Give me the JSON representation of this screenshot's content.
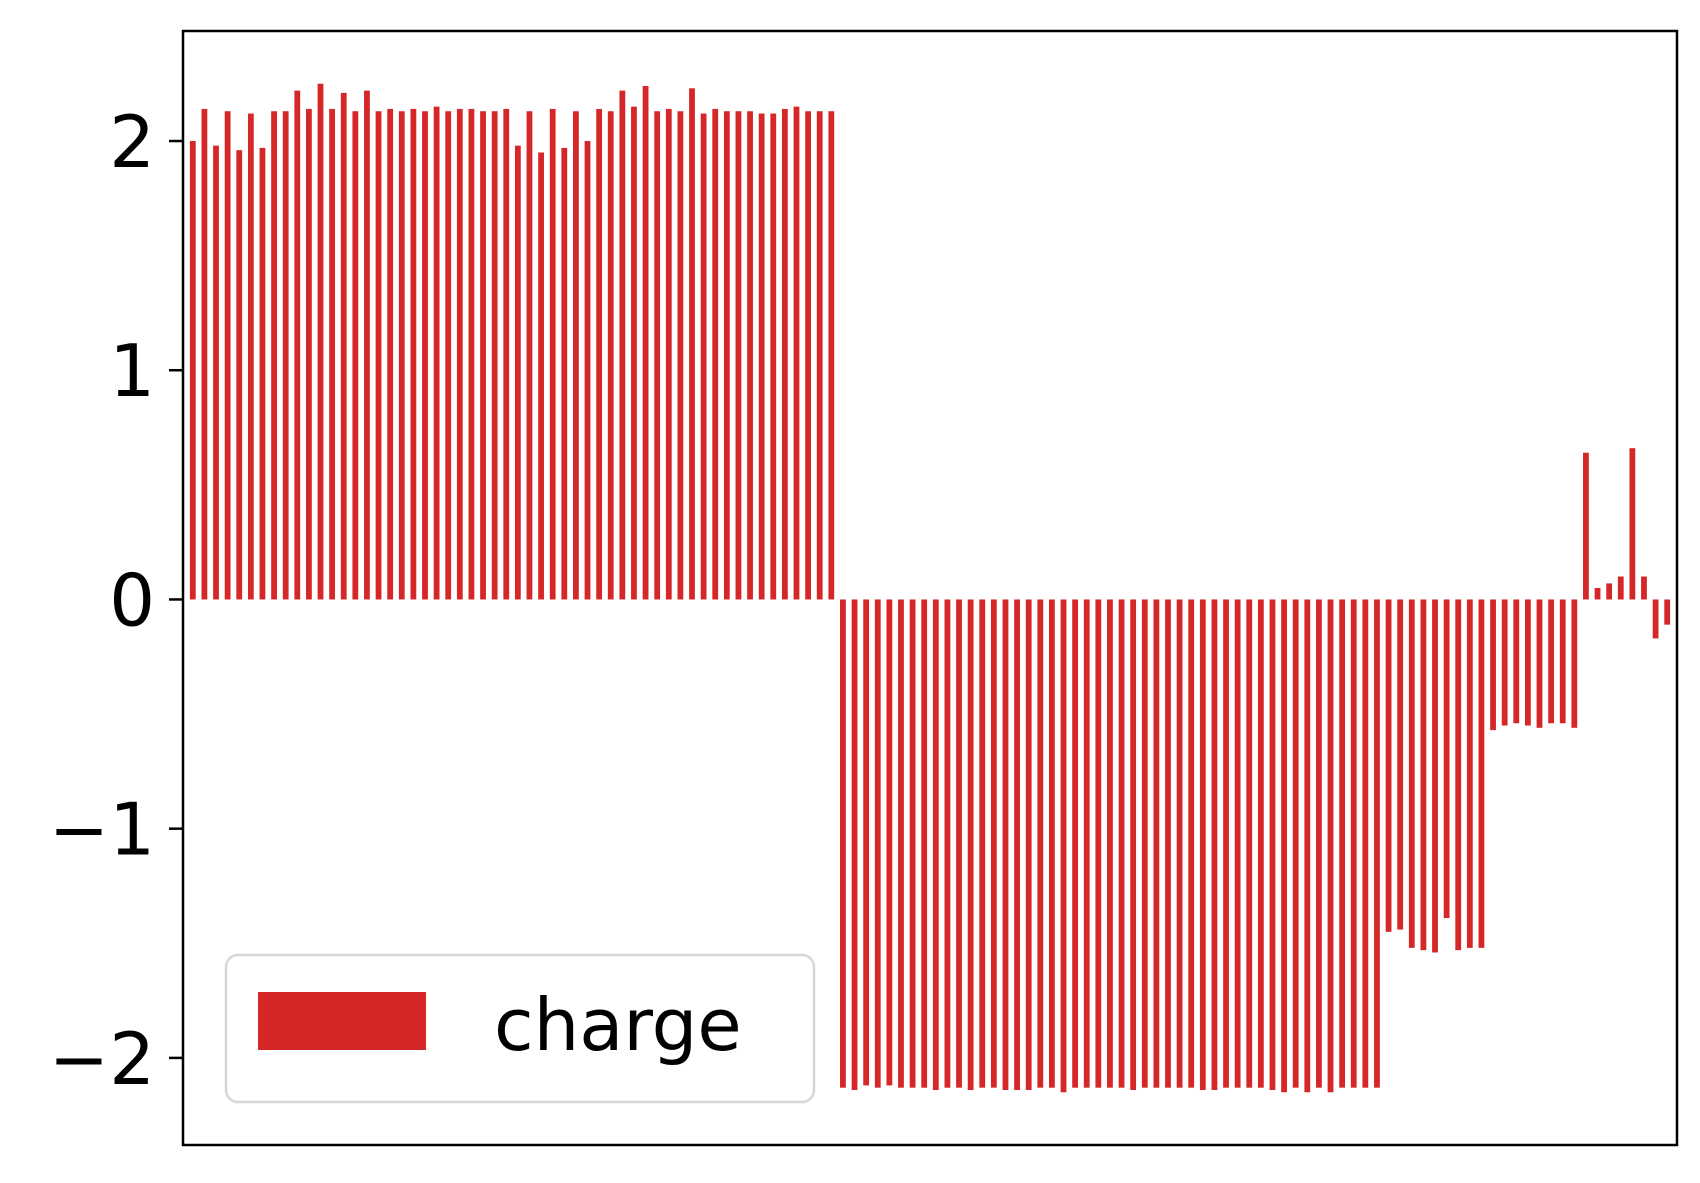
{
  "chart_data": {
    "type": "bar",
    "series": [
      {
        "name": "charge",
        "color": "#d62728",
        "values": [
          2.0,
          2.14,
          1.98,
          2.13,
          1.96,
          2.12,
          1.97,
          2.13,
          2.13,
          2.22,
          2.14,
          2.25,
          2.14,
          2.21,
          2.13,
          2.22,
          2.13,
          2.14,
          2.13,
          2.14,
          2.13,
          2.15,
          2.13,
          2.14,
          2.14,
          2.13,
          2.13,
          2.14,
          1.98,
          2.13,
          1.95,
          2.14,
          1.97,
          2.13,
          2.0,
          2.14,
          2.13,
          2.22,
          2.15,
          2.24,
          2.13,
          2.14,
          2.13,
          2.23,
          2.12,
          2.14,
          2.13,
          2.13,
          2.13,
          2.12,
          2.12,
          2.14,
          2.15,
          2.13,
          2.13,
          2.13,
          -2.13,
          -2.14,
          -2.12,
          -2.13,
          -2.12,
          -2.13,
          -2.13,
          -2.13,
          -2.14,
          -2.13,
          -2.13,
          -2.14,
          -2.13,
          -2.13,
          -2.14,
          -2.14,
          -2.14,
          -2.13,
          -2.13,
          -2.15,
          -2.13,
          -2.13,
          -2.13,
          -2.13,
          -2.13,
          -2.14,
          -2.13,
          -2.13,
          -2.13,
          -2.13,
          -2.13,
          -2.14,
          -2.14,
          -2.13,
          -2.13,
          -2.13,
          -2.13,
          -2.14,
          -2.15,
          -2.13,
          -2.15,
          -2.13,
          -2.15,
          -2.13,
          -2.13,
          -2.13,
          -2.13,
          -1.45,
          -1.44,
          -1.52,
          -1.53,
          -1.54,
          -1.39,
          -1.53,
          -1.52,
          -1.52,
          -0.57,
          -0.55,
          -0.54,
          -0.55,
          -0.56,
          -0.54,
          -0.54,
          -0.56,
          0.64,
          0.05,
          0.07,
          0.1,
          0.66,
          0.1,
          -0.17,
          -0.11
        ]
      }
    ],
    "ylim": [
      -2.38,
      2.48
    ],
    "yticks": [
      -2,
      -1,
      0,
      1,
      2
    ],
    "ytick_labels": [
      "−2",
      "−1",
      "0",
      "1",
      "2"
    ],
    "xticks": [],
    "grid": false,
    "legend_position": "lower-left",
    "title": "",
    "xlabel": "",
    "ylabel": ""
  }
}
